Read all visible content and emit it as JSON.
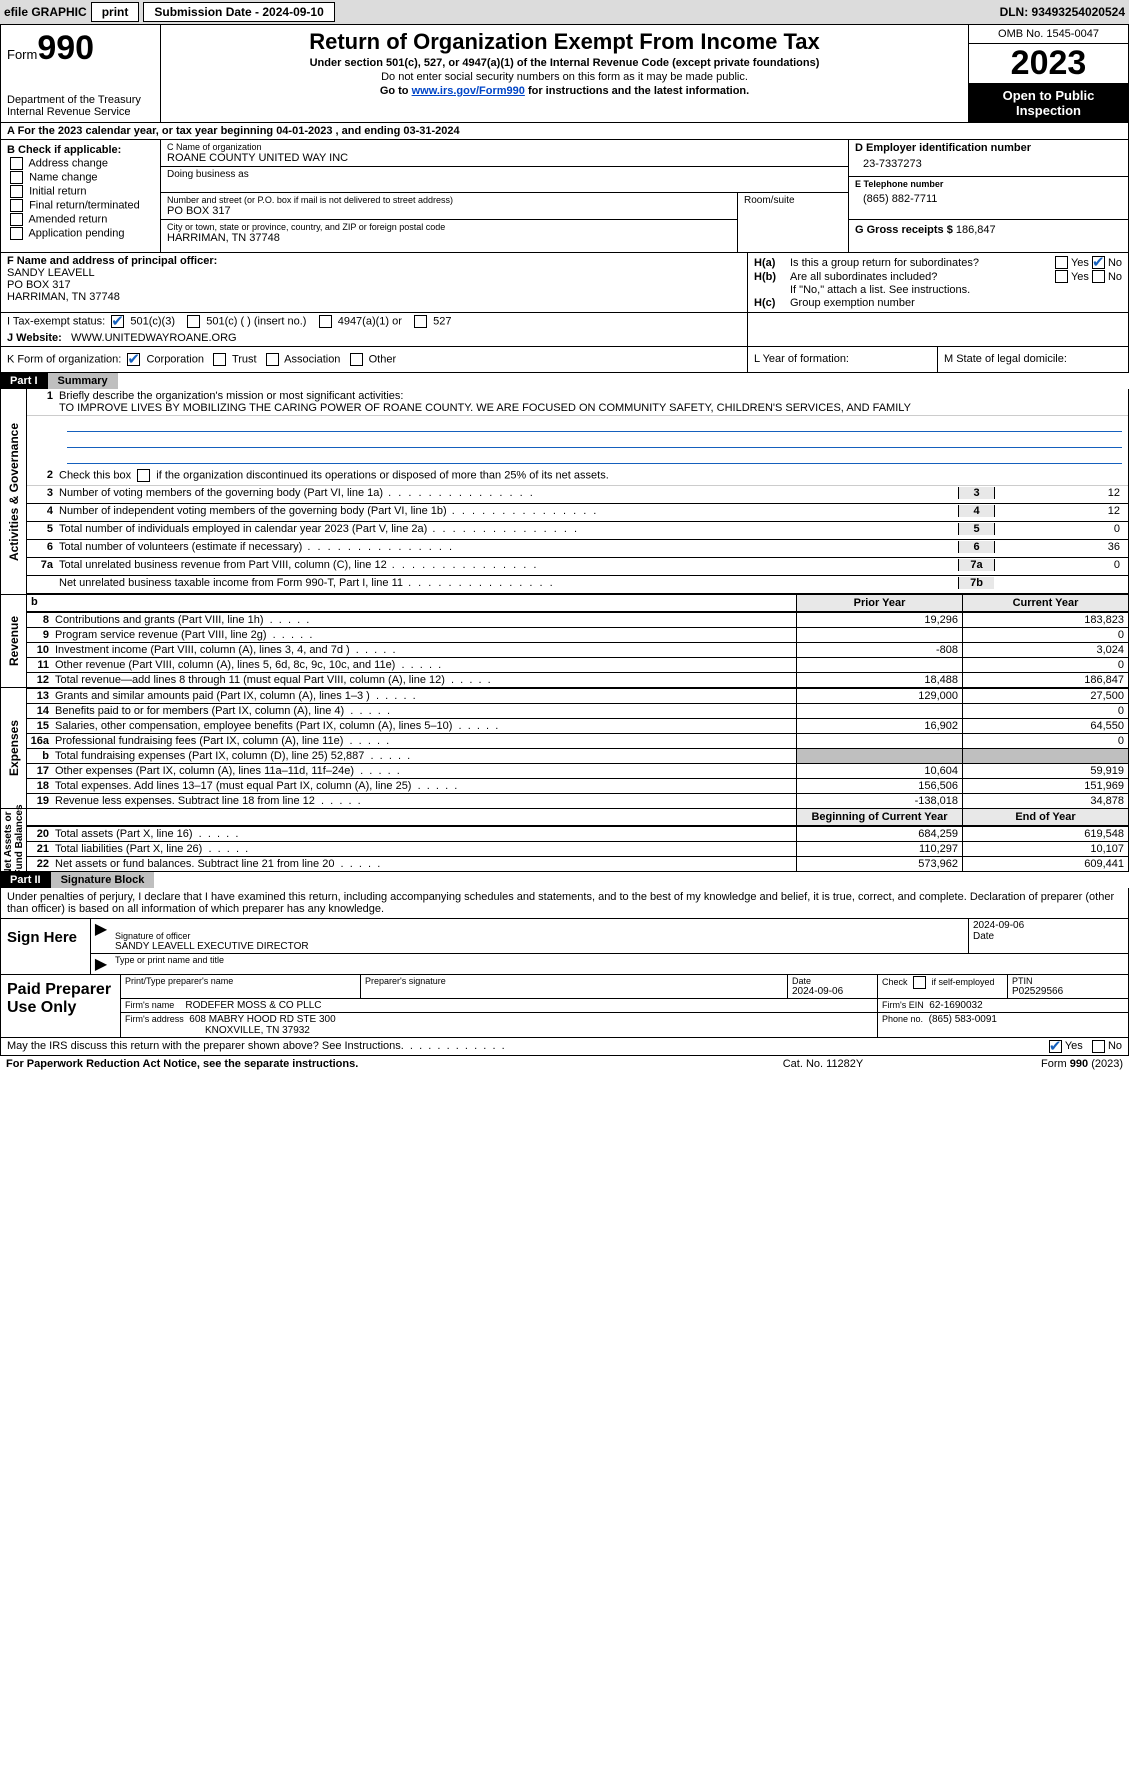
{
  "topbar": {
    "efile": "efile GRAPHIC",
    "print": "print",
    "submission": "Submission Date - 2024-09-10",
    "dln": "DLN: 93493254020524"
  },
  "header": {
    "form_word": "Form",
    "form_no": "990",
    "dept": "Department of the Treasury\nInternal Revenue Service",
    "title": "Return of Organization Exempt From Income Tax",
    "sub1": "Under section 501(c), 527, or 4947(a)(1) of the Internal Revenue Code (except private foundations)",
    "sub2": "Do not enter social security numbers on this form as it may be made public.",
    "sub3_pre": "Go to ",
    "sub3_link": "www.irs.gov/Form990",
    "sub3_post": " for instructions and the latest information.",
    "omb": "OMB No. 1545-0047",
    "year": "2023",
    "open": "Open to Public Inspection"
  },
  "rowA": "A   For the 2023 calendar year, or tax year beginning 04-01-2023   , and ending 03-31-2024",
  "boxB": {
    "hdr": "B Check if applicable:",
    "items": [
      "Address change",
      "Name change",
      "Initial return",
      "Final return/terminated",
      "Amended return",
      "Application pending"
    ]
  },
  "boxC": {
    "name_lbl": "C Name of organization",
    "name": "ROANE COUNTY UNITED WAY INC",
    "dba_lbl": "Doing business as",
    "street_lbl": "Number and street (or P.O. box if mail is not delivered to street address)",
    "street": "PO BOX 317",
    "room_lbl": "Room/suite",
    "city_lbl": "City or town, state or province, country, and ZIP or foreign postal code",
    "city": "HARRIMAN, TN  37748"
  },
  "boxD": {
    "ein_lbl": "D Employer identification number",
    "ein": "23-7337273",
    "phone_lbl": "E Telephone number",
    "phone": "(865) 882-7711",
    "gross_lbl": "G Gross receipts $",
    "gross": "186,847"
  },
  "rowF": {
    "lbl": "F  Name and address of principal officer:",
    "name": "SANDY LEAVELL",
    "addr1": "PO BOX 317",
    "addr2": "HARRIMAN, TN  37748",
    "Ha": "Is this a group return for subordinates?",
    "Hb": "Are all subordinates included?",
    "Hb_note": "If \"No,\" attach a list. See instructions.",
    "Hc": "Group exemption number"
  },
  "rowI": {
    "lbl": "I    Tax-exempt status:",
    "opts": [
      "501(c)(3)",
      "501(c) (  ) (insert no.)",
      "4947(a)(1) or",
      "527"
    ]
  },
  "rowJ": {
    "lbl": "J   Website:",
    "val": "WWW.UNITEDWAYROANE.ORG"
  },
  "rowK": {
    "lbl": "K Form of organization:",
    "opts": [
      "Corporation",
      "Trust",
      "Association",
      "Other"
    ],
    "L": "L Year of formation:",
    "M": "M State of legal domicile:"
  },
  "partI": {
    "pn": "Part I",
    "pt": "Summary",
    "q1_lbl": "Briefly describe the organization's mission or most significant activities:",
    "q1_txt": "TO IMPROVE LIVES BY MOBILIZING THE CARING POWER OF ROANE COUNTY. WE ARE FOCUSED ON COMMUNITY SAFETY, CHILDREN'S SERVICES, AND FAMILY",
    "q2": "Check this box          if the organization discontinued its operations or disposed of more than 25% of its net assets.",
    "lines_ag": [
      {
        "n": "3",
        "t": "Number of voting members of the governing body (Part VI, line 1a)",
        "k": "3",
        "v": "12"
      },
      {
        "n": "4",
        "t": "Number of independent voting members of the governing body (Part VI, line 1b)",
        "k": "4",
        "v": "12"
      },
      {
        "n": "5",
        "t": "Total number of individuals employed in calendar year 2023 (Part V, line 2a)",
        "k": "5",
        "v": "0"
      },
      {
        "n": "6",
        "t": "Total number of volunteers (estimate if necessary)",
        "k": "6",
        "v": "36"
      },
      {
        "n": "7a",
        "t": "Total unrelated business revenue from Part VIII, column (C), line 12",
        "k": "7a",
        "v": "0"
      },
      {
        "n": "",
        "t": "Net unrelated business taxable income from Form 990-T, Part I, line 11",
        "k": "7b",
        "v": ""
      }
    ],
    "yr_prior": "Prior Year",
    "yr_curr": "Current Year",
    "yr_beg": "Beginning of Current Year",
    "yr_end": "End of Year",
    "rev": [
      {
        "n": "8",
        "t": "Contributions and grants (Part VIII, line 1h)",
        "p": "19,296",
        "c": "183,823"
      },
      {
        "n": "9",
        "t": "Program service revenue (Part VIII, line 2g)",
        "p": "",
        "c": "0"
      },
      {
        "n": "10",
        "t": "Investment income (Part VIII, column (A), lines 3, 4, and 7d )",
        "p": "-808",
        "c": "3,024"
      },
      {
        "n": "11",
        "t": "Other revenue (Part VIII, column (A), lines 5, 6d, 8c, 9c, 10c, and 11e)",
        "p": "",
        "c": "0"
      },
      {
        "n": "12",
        "t": "Total revenue—add lines 8 through 11 (must equal Part VIII, column (A), line 12)",
        "p": "18,488",
        "c": "186,847"
      }
    ],
    "exp": [
      {
        "n": "13",
        "t": "Grants and similar amounts paid (Part IX, column (A), lines 1–3 )",
        "p": "129,000",
        "c": "27,500"
      },
      {
        "n": "14",
        "t": "Benefits paid to or for members (Part IX, column (A), line 4)",
        "p": "",
        "c": "0"
      },
      {
        "n": "15",
        "t": "Salaries, other compensation, employee benefits (Part IX, column (A), lines 5–10)",
        "p": "16,902",
        "c": "64,550"
      },
      {
        "n": "16a",
        "t": "Professional fundraising fees (Part IX, column (A), line 11e)",
        "p": "",
        "c": "0"
      },
      {
        "n": "b",
        "t": "Total fundraising expenses (Part IX, column (D), line 25) 52,887",
        "p": "GRAY",
        "c": "GRAY"
      },
      {
        "n": "17",
        "t": "Other expenses (Part IX, column (A), lines 11a–11d, 11f–24e)",
        "p": "10,604",
        "c": "59,919"
      },
      {
        "n": "18",
        "t": "Total expenses. Add lines 13–17 (must equal Part IX, column (A), line 25)",
        "p": "156,506",
        "c": "151,969"
      },
      {
        "n": "19",
        "t": "Revenue less expenses. Subtract line 18 from line 12",
        "p": "-138,018",
        "c": "34,878"
      }
    ],
    "na": [
      {
        "n": "20",
        "t": "Total assets (Part X, line 16)",
        "p": "684,259",
        "c": "619,548"
      },
      {
        "n": "21",
        "t": "Total liabilities (Part X, line 26)",
        "p": "110,297",
        "c": "10,107"
      },
      {
        "n": "22",
        "t": "Net assets or fund balances. Subtract line 21 from line 20",
        "p": "573,962",
        "c": "609,441"
      }
    ],
    "vtab_ag": "Activities & Governance",
    "vtab_rev": "Revenue",
    "vtab_exp": "Expenses",
    "vtab_na": "Net Assets or\nFund Balances"
  },
  "partII": {
    "pn": "Part II",
    "pt": "Signature Block",
    "intro": "Under penalties of perjury, I declare that I have examined this return, including accompanying schedules and statements, and to the best of my knowledge and belief, it is true, correct, and complete. Declaration of preparer (other than officer) is based on all information of which preparer has any knowledge.",
    "sign_here": "Sign Here",
    "sig_lbl": "Signature of officer",
    "sig_name": "SANDY LEAVELL  EXECUTIVE DIRECTOR",
    "sig_type": "Type or print name and title",
    "sig_date_lbl": "Date",
    "sig_date": "2024-09-06",
    "paid": "Paid Preparer Use Only",
    "prep_name_lbl": "Print/Type preparer's name",
    "prep_sig_lbl": "Preparer's signature",
    "prep_date_lbl": "Date",
    "prep_date": "2024-09-06",
    "prep_self": "Check        if self-employed",
    "ptin_lbl": "PTIN",
    "ptin": "P02529566",
    "firm_name_lbl": "Firm's name",
    "firm_name": "RODEFER MOSS & CO PLLC",
    "firm_ein_lbl": "Firm's EIN",
    "firm_ein": "62-1690032",
    "firm_addr_lbl": "Firm's address",
    "firm_addr1": "608 MABRY HOOD RD STE 300",
    "firm_addr2": "KNOXVILLE, TN  37932",
    "firm_phone_lbl": "Phone no.",
    "firm_phone": "(865) 583-0091",
    "discuss": "May the IRS discuss this return with the preparer shown above? See Instructions."
  },
  "footer": {
    "f1": "For Paperwork Reduction Act Notice, see the separate instructions.",
    "f2": "Cat. No. 11282Y",
    "f3": "Form 990 (2023)"
  },
  "words": {
    "yes": "Yes",
    "no": "No"
  }
}
